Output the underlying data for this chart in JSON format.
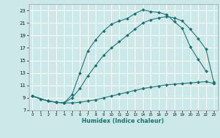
{
  "title": "",
  "xlabel": "Humidex (Indice chaleur)",
  "background_color": "#cce8e8",
  "grid_color": "#ffffff",
  "line_color": "#1a7070",
  "xlim": [
    -0.5,
    23.5
  ],
  "ylim": [
    7.0,
    24.0
  ],
  "xticks": [
    0,
    1,
    2,
    3,
    4,
    5,
    6,
    7,
    8,
    9,
    10,
    11,
    12,
    13,
    14,
    15,
    16,
    17,
    18,
    19,
    20,
    21,
    22,
    23
  ],
  "yticks": [
    7,
    9,
    11,
    13,
    15,
    17,
    19,
    21,
    23
  ],
  "curve_bottom_x": [
    0,
    1,
    2,
    3,
    4,
    5,
    6,
    7,
    8,
    9,
    10,
    11,
    12,
    13,
    14,
    15,
    16,
    17,
    18,
    19,
    20,
    21,
    22,
    23
  ],
  "curve_bottom_y": [
    9.3,
    8.8,
    8.5,
    8.3,
    8.2,
    8.2,
    8.3,
    8.5,
    8.7,
    9.0,
    9.3,
    9.6,
    9.9,
    10.2,
    10.5,
    10.7,
    10.9,
    11.1,
    11.2,
    11.3,
    11.4,
    11.5,
    11.6,
    11.3
  ],
  "curve_top_x": [
    0,
    2,
    3,
    4,
    5,
    6,
    7,
    8,
    9,
    10,
    11,
    12,
    13,
    14,
    15,
    16,
    17,
    18,
    19,
    20,
    21,
    22
  ],
  "curve_top_y": [
    9.3,
    8.5,
    8.3,
    8.2,
    9.5,
    13.0,
    16.5,
    18.3,
    19.7,
    20.8,
    21.3,
    21.7,
    22.5,
    23.1,
    22.8,
    22.7,
    22.3,
    21.2,
    20.1,
    17.2,
    15.2,
    13.3
  ],
  "curve_mid_x": [
    0,
    2,
    3,
    4,
    5,
    6,
    7,
    8,
    9,
    10,
    11,
    12,
    13,
    14,
    15,
    16,
    17,
    18,
    19,
    20,
    21,
    22,
    23
  ],
  "curve_mid_y": [
    9.3,
    8.5,
    8.3,
    8.2,
    9.0,
    10.5,
    12.5,
    14.2,
    15.8,
    17.0,
    18.0,
    19.0,
    20.0,
    21.0,
    21.5,
    21.8,
    22.0,
    21.8,
    21.3,
    20.0,
    18.5,
    16.8,
    11.5
  ]
}
